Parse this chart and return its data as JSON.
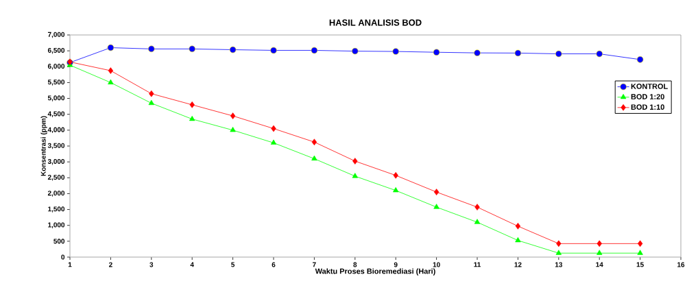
{
  "chart_data": {
    "type": "line",
    "title": "HASIL ANALISIS BOD",
    "xlabel": "Waktu Proses Bioremediasi (Hari)",
    "ylabel": "Konsentrasi (ppm)",
    "x": [
      1,
      2,
      3,
      4,
      5,
      6,
      7,
      8,
      9,
      10,
      11,
      12,
      13,
      14,
      15
    ],
    "series": [
      {
        "name": "KONTROL",
        "color": "#0000ff",
        "marker": "circle",
        "values": [
          6130,
          6600,
          6560,
          6560,
          6535,
          6515,
          6515,
          6490,
          6480,
          6455,
          6435,
          6430,
          6405,
          6405,
          6225
        ]
      },
      {
        "name": "BOD 1:20",
        "color": "#00ff00",
        "marker": "triangle",
        "values": [
          6050,
          5500,
          4850,
          4350,
          4000,
          3600,
          3100,
          2550,
          2100,
          1575,
          1100,
          525,
          125,
          125,
          125
        ]
      },
      {
        "name": "BOD 1:10",
        "color": "#ff0000",
        "marker": "diamond",
        "values": [
          6150,
          5875,
          5150,
          4800,
          4450,
          4050,
          3625,
          3025,
          2575,
          2050,
          1575,
          975,
          425,
          425,
          425
        ]
      }
    ],
    "xlim": [
      1,
      16
    ],
    "xticks": [
      1,
      2,
      3,
      4,
      5,
      6,
      7,
      8,
      9,
      10,
      11,
      12,
      13,
      14,
      15,
      16
    ],
    "ylim": [
      0,
      7000
    ],
    "yticks": [
      {
        "value": 0,
        "label": "0"
      },
      {
        "value": 500,
        "label": "500"
      },
      {
        "value": 1000,
        "label": "1,000"
      },
      {
        "value": 1500,
        "label": "1,500"
      },
      {
        "value": 2000,
        "label": "2,000"
      },
      {
        "value": 2500,
        "label": "2,500"
      },
      {
        "value": 3000,
        "label": "3,000"
      },
      {
        "value": 3500,
        "label": "3,500"
      },
      {
        "value": 4000,
        "label": "4,000"
      },
      {
        "value": 4500,
        "label": "4,500"
      },
      {
        "value": 5000,
        "label": "5,000"
      },
      {
        "value": 5500,
        "label": "5,500"
      },
      {
        "value": 6000,
        "label": "6,000"
      },
      {
        "value": 6500,
        "label": "6,500"
      },
      {
        "value": 7000,
        "label": "7,000"
      }
    ],
    "grid": false,
    "legend": "right"
  }
}
